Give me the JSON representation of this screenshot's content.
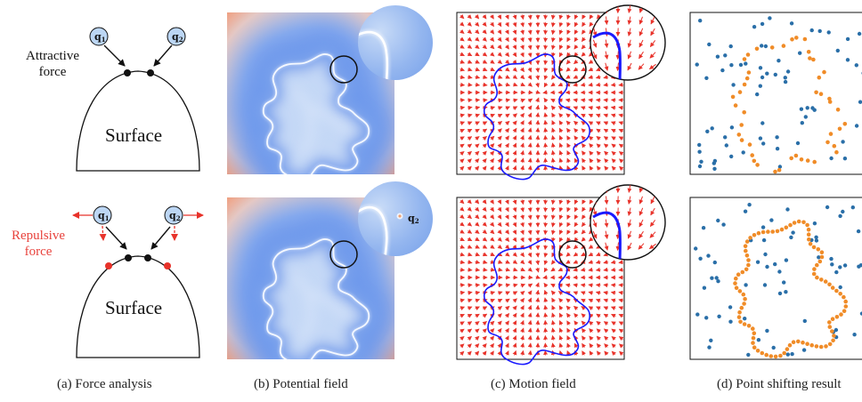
{
  "panel_a": {
    "attractive_label": "Attractive force",
    "attractive_line1": "Attractive",
    "attractive_line2": "force",
    "repulsive_line1": "Repulsive",
    "repulsive_line2": "force",
    "surface_top": "Surface",
    "surface_bottom": "Surface",
    "q1": "q",
    "q1_sub": "1",
    "q2": "q",
    "q2_sub": "2"
  },
  "panel_b": {
    "inset_point": "q",
    "inset_point_sub": "2"
  },
  "captions": {
    "a": "(a) Force analysis",
    "b": "(b) Potential field",
    "c": "(c) Motion field",
    "d": "(d) Point shifting result"
  },
  "colors": {
    "surface_curve": "#1a1aff",
    "arrow_red": "#e8322a",
    "repulsive_text": "#e8423c",
    "orange_points": "#f08c28",
    "blue_points": "#2a6fa8",
    "point_circle_fill": "#bcd6f4",
    "field_inner": "#b9d3f7",
    "field_mid": "#6f9cec",
    "field_outer": "#f0a98c"
  }
}
